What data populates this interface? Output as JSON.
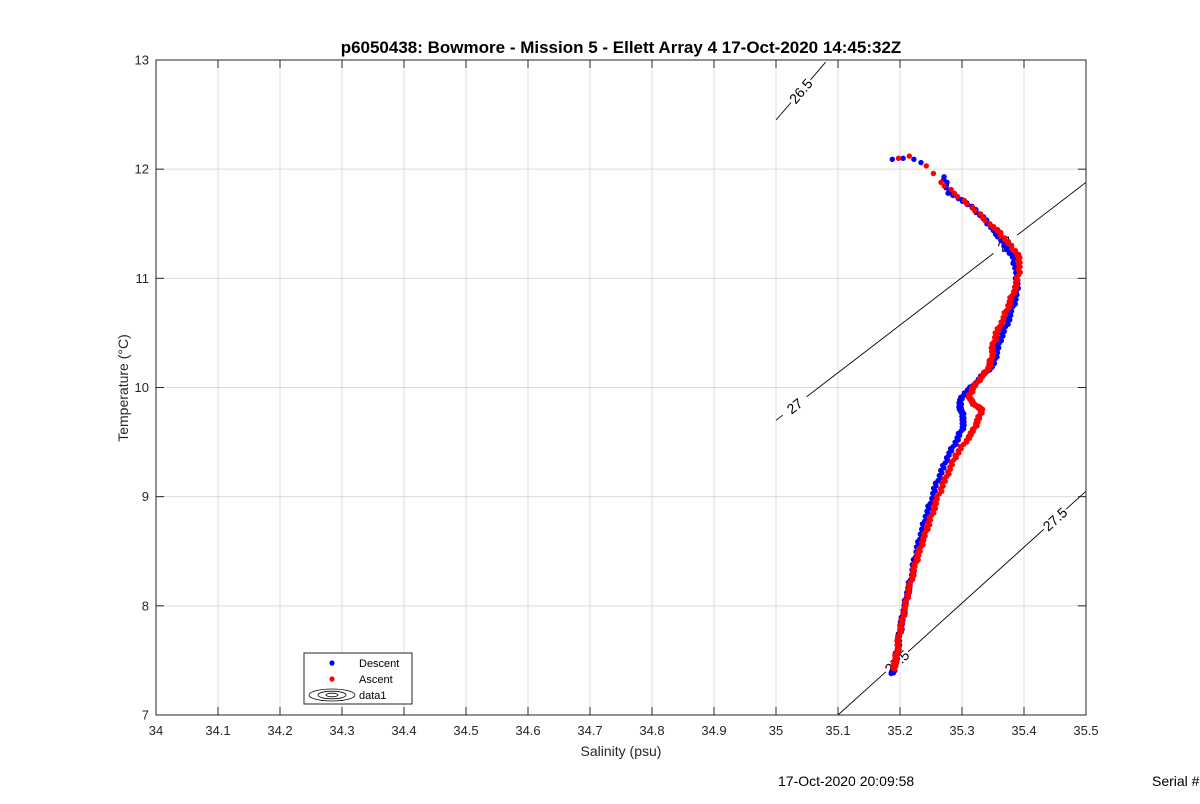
{
  "chart_data": {
    "type": "scatter",
    "title": "p6050438: Bowmore - Mission 5 - Ellett Array 4 17-Oct-2020 14:45:32Z",
    "xlabel": "Salinity (psu)",
    "ylabel": "Temperature (°C)",
    "xlim": [
      34,
      35.5
    ],
    "ylim": [
      7,
      13
    ],
    "x_ticks": [
      34,
      34.1,
      34.2,
      34.3,
      34.4,
      34.5,
      34.6,
      34.7,
      34.8,
      34.9,
      35,
      35.1,
      35.2,
      35.3,
      35.4,
      35.5
    ],
    "x_tick_labels": [
      "34",
      "34.1",
      "34.2",
      "34.3",
      "34.4",
      "34.5",
      "34.6",
      "34.7",
      "34.8",
      "34.9",
      "35",
      "35.1",
      "35.2",
      "35.3",
      "35.4",
      "35.5"
    ],
    "y_ticks": [
      7,
      8,
      9,
      10,
      11,
      12,
      13
    ],
    "y_tick_labels": [
      "7",
      "8",
      "9",
      "10",
      "11",
      "12",
      "13"
    ],
    "grid": true,
    "legend": {
      "location": "bottom-left",
      "entries": [
        {
          "label": "Descent",
          "color": "#0000ff",
          "marker": "dot"
        },
        {
          "label": "Ascent",
          "color": "#ff0000",
          "marker": "dot"
        },
        {
          "label": "data1",
          "color": "#000000",
          "marker": "contour"
        }
      ]
    },
    "series": [
      {
        "name": "Descent",
        "color": "#0000ff",
        "points": [
          [
            35.19,
            12.09
          ],
          [
            35.205,
            12.1
          ],
          [
            35.22,
            12.09
          ],
          [
            35.235,
            12.06
          ],
          [
            35.27,
            11.93
          ],
          [
            35.28,
            11.78
          ],
          [
            35.3,
            11.72
          ],
          [
            35.32,
            11.63
          ],
          [
            35.335,
            11.55
          ],
          [
            35.35,
            11.45
          ],
          [
            35.36,
            11.38
          ],
          [
            35.372,
            11.28
          ],
          [
            35.383,
            11.18
          ],
          [
            35.388,
            11.05
          ],
          [
            35.389,
            10.95
          ],
          [
            35.387,
            10.83
          ],
          [
            35.38,
            10.7
          ],
          [
            35.372,
            10.58
          ],
          [
            35.362,
            10.45
          ],
          [
            35.356,
            10.32
          ],
          [
            35.35,
            10.2
          ],
          [
            35.335,
            10.12
          ],
          [
            35.32,
            10.03
          ],
          [
            35.305,
            9.95
          ],
          [
            35.296,
            9.87
          ],
          [
            35.298,
            9.8
          ],
          [
            35.303,
            9.72
          ],
          [
            35.3,
            9.62
          ],
          [
            35.29,
            9.5
          ],
          [
            35.278,
            9.38
          ],
          [
            35.268,
            9.24
          ],
          [
            35.258,
            9.1
          ],
          [
            35.25,
            8.96
          ],
          [
            35.242,
            8.82
          ],
          [
            35.235,
            8.68
          ],
          [
            35.229,
            8.54
          ],
          [
            35.223,
            8.4
          ],
          [
            35.218,
            8.26
          ],
          [
            35.212,
            8.12
          ],
          [
            35.207,
            7.98
          ],
          [
            35.203,
            7.85
          ],
          [
            35.199,
            7.72
          ],
          [
            35.196,
            7.6
          ],
          [
            35.193,
            7.5
          ],
          [
            35.19,
            7.42
          ],
          [
            35.188,
            7.38
          ]
        ]
      },
      {
        "name": "Ascent",
        "color": "#ff0000",
        "points": [
          [
            35.2,
            12.1
          ],
          [
            35.215,
            12.12
          ],
          [
            35.24,
            12.03
          ],
          [
            35.255,
            11.96
          ],
          [
            35.265,
            11.88
          ],
          [
            35.31,
            11.68
          ],
          [
            35.345,
            11.5
          ],
          [
            35.36,
            11.42
          ],
          [
            35.375,
            11.32
          ],
          [
            35.39,
            11.22
          ],
          [
            35.393,
            11.13
          ],
          [
            35.39,
            10.98
          ],
          [
            35.382,
            10.86
          ],
          [
            35.375,
            10.75
          ],
          [
            35.366,
            10.62
          ],
          [
            35.356,
            10.5
          ],
          [
            35.35,
            10.38
          ],
          [
            35.348,
            10.28
          ],
          [
            35.343,
            10.18
          ],
          [
            35.332,
            10.1
          ],
          [
            35.318,
            10.0
          ],
          [
            35.312,
            9.92
          ],
          [
            35.316,
            9.86
          ],
          [
            35.326,
            9.82
          ],
          [
            35.332,
            9.8
          ],
          [
            35.326,
            9.7
          ],
          [
            35.318,
            9.6
          ],
          [
            35.305,
            9.5
          ],
          [
            35.29,
            9.38
          ],
          [
            35.28,
            9.25
          ],
          [
            35.27,
            9.12
          ],
          [
            35.26,
            8.98
          ],
          [
            35.252,
            8.85
          ],
          [
            35.244,
            8.72
          ],
          [
            35.237,
            8.6
          ],
          [
            35.23,
            8.48
          ],
          [
            35.224,
            8.36
          ],
          [
            35.218,
            8.24
          ],
          [
            35.212,
            8.1
          ],
          [
            35.207,
            7.96
          ],
          [
            35.202,
            7.82
          ],
          [
            35.198,
            7.7
          ],
          [
            35.195,
            7.58
          ],
          [
            35.192,
            7.48
          ],
          [
            35.19,
            7.42
          ]
        ]
      }
    ],
    "isopycnals": [
      {
        "label": "26.5",
        "points": [
          [
            35.0,
            12.45
          ],
          [
            35.08,
            12.98
          ]
        ]
      },
      {
        "label": "27",
        "points": [
          [
            35.0,
            9.7
          ],
          [
            35.5,
            11.88
          ]
        ]
      },
      {
        "label": "27.5",
        "points": [
          [
            35.1,
            7.0
          ],
          [
            35.5,
            9.05
          ]
        ]
      }
    ],
    "contour_labels": [
      "26.5",
      "27",
      "27",
      "27.5",
      "27.5"
    ]
  },
  "footer": {
    "timestamp": "17-Oct-2020 20:09:58",
    "serial": "Serial #"
  }
}
